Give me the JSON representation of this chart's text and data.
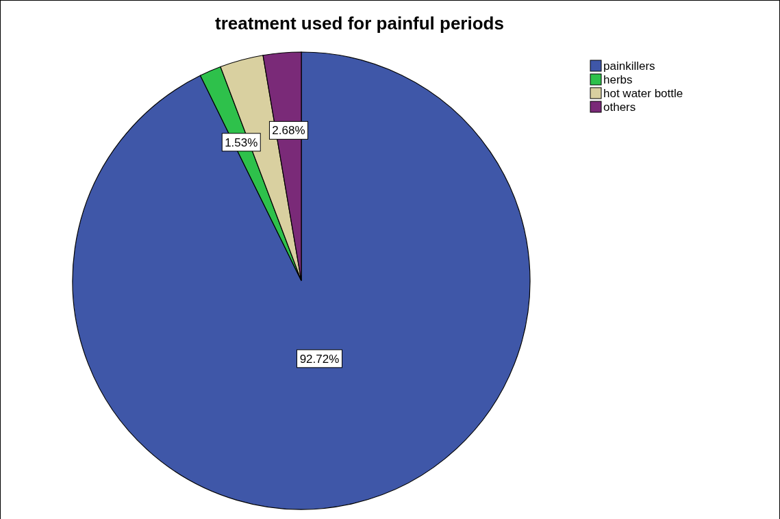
{
  "chart_data": {
    "type": "pie",
    "title": "treatment used for painful periods",
    "categories": [
      "painkillers",
      "herbs",
      "hot water bottle",
      "others"
    ],
    "values": [
      92.72,
      1.53,
      3.07,
      2.68
    ],
    "colors": [
      "#3f57a8",
      "#2ec14b",
      "#d9d0a0",
      "#7a2a78"
    ],
    "value_labels": [
      "92.72%",
      "1.53%",
      null,
      "2.68%"
    ],
    "legend": "top right"
  }
}
